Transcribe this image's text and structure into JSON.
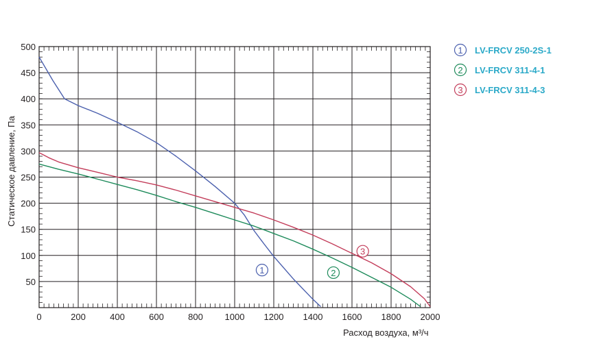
{
  "chart_data": {
    "type": "line",
    "title": "",
    "xlabel": "Расход воздуха, м³/ч",
    "ylabel": "Статическое давление, Па",
    "xlim": [
      0,
      2000
    ],
    "ylim": [
      0,
      500
    ],
    "xticks": [
      0,
      200,
      400,
      600,
      800,
      1000,
      1200,
      1400,
      1600,
      1800,
      2000
    ],
    "yticks": [
      50,
      100,
      150,
      200,
      250,
      300,
      350,
      400,
      450,
      500
    ],
    "grid": true,
    "legend_position": "right",
    "series": [
      {
        "marker": "1",
        "name": "LV-FRCV 250-2S-1",
        "color": "#4a5fad",
        "marker_at": [
          1140,
          72
        ],
        "points": [
          [
            0,
            480
          ],
          [
            70,
            435
          ],
          [
            130,
            400
          ],
          [
            200,
            387
          ],
          [
            300,
            372
          ],
          [
            400,
            355
          ],
          [
            500,
            337
          ],
          [
            600,
            316
          ],
          [
            700,
            290
          ],
          [
            800,
            262
          ],
          [
            900,
            232
          ],
          [
            1000,
            200
          ],
          [
            1050,
            177
          ],
          [
            1100,
            147
          ],
          [
            1150,
            122
          ],
          [
            1200,
            98
          ],
          [
            1300,
            55
          ],
          [
            1400,
            16
          ],
          [
            1440,
            2
          ]
        ]
      },
      {
        "marker": "2",
        "name": "LV-FRCV 311-4-1",
        "color": "#1d8a5a",
        "marker_at": [
          1505,
          67
        ],
        "points": [
          [
            0,
            275
          ],
          [
            100,
            265
          ],
          [
            200,
            256
          ],
          [
            300,
            246
          ],
          [
            400,
            236
          ],
          [
            500,
            226
          ],
          [
            600,
            215
          ],
          [
            700,
            203
          ],
          [
            800,
            192
          ],
          [
            900,
            180
          ],
          [
            1000,
            168
          ],
          [
            1100,
            156
          ],
          [
            1200,
            142
          ],
          [
            1300,
            128
          ],
          [
            1400,
            112
          ],
          [
            1500,
            95
          ],
          [
            1600,
            77
          ],
          [
            1700,
            58
          ],
          [
            1800,
            39
          ],
          [
            1900,
            16
          ],
          [
            1950,
            2
          ]
        ]
      },
      {
        "marker": "3",
        "name": "LV-FRCV 311-4-3",
        "color": "#c33d5a",
        "marker_at": [
          1655,
          108
        ],
        "points": [
          [
            0,
            297
          ],
          [
            50,
            287
          ],
          [
            100,
            279
          ],
          [
            200,
            268
          ],
          [
            300,
            259
          ],
          [
            400,
            250
          ],
          [
            500,
            243
          ],
          [
            600,
            235
          ],
          [
            700,
            225
          ],
          [
            800,
            214
          ],
          [
            900,
            203
          ],
          [
            1000,
            192
          ],
          [
            1100,
            181
          ],
          [
            1200,
            168
          ],
          [
            1300,
            154
          ],
          [
            1400,
            139
          ],
          [
            1500,
            122
          ],
          [
            1600,
            104
          ],
          [
            1700,
            86
          ],
          [
            1800,
            65
          ],
          [
            1900,
            40
          ],
          [
            1970,
            17
          ],
          [
            2000,
            2
          ]
        ]
      }
    ]
  }
}
